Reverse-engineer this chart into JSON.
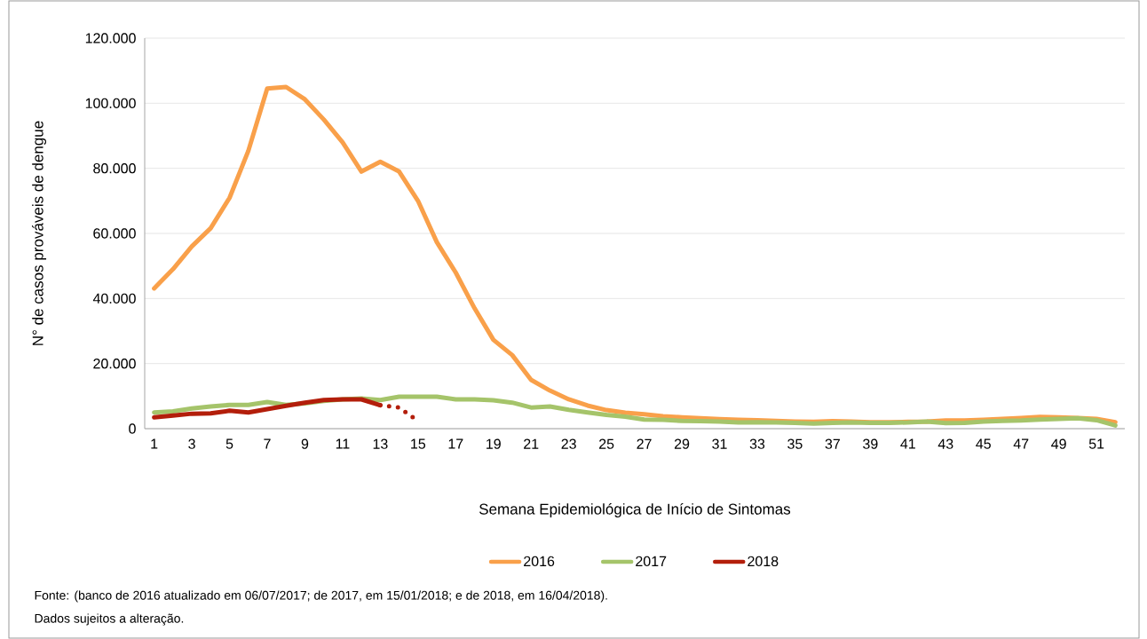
{
  "chart_data": {
    "type": "line",
    "xlabel": "Semana Epidemiológica de Início de Sintomas",
    "ylabel": "N° de casos prováveis de dengue",
    "annotations": [
      "Fonte: (banco de 2016 atualizado em 06/07/2017; de 2017, em 15/01/2018; e de 2018, em 16/04/2018).",
      "Dados sujeitos a alteração."
    ],
    "x": [
      1,
      2,
      3,
      4,
      5,
      6,
      7,
      8,
      9,
      10,
      11,
      12,
      13,
      14,
      15,
      16,
      17,
      18,
      19,
      20,
      21,
      22,
      23,
      24,
      25,
      26,
      27,
      28,
      29,
      30,
      31,
      32,
      33,
      34,
      35,
      36,
      37,
      38,
      39,
      40,
      41,
      42,
      43,
      44,
      45,
      46,
      47,
      48,
      49,
      50,
      51,
      52
    ],
    "series": [
      {
        "name": "2016",
        "color": "#f9a04a",
        "values": [
          43100,
          49000,
          56000,
          61600,
          70900,
          85400,
          104500,
          105000,
          101200,
          95000,
          88000,
          79000,
          82000,
          79000,
          70000,
          57300,
          48000,
          37000,
          27300,
          22600,
          15000,
          11700,
          9000,
          7100,
          5700,
          4900,
          4400,
          3800,
          3500,
          3200,
          2900,
          2700,
          2600,
          2400,
          2200,
          2100,
          2300,
          2200,
          2000,
          2000,
          2100,
          2200,
          2500,
          2500,
          2700,
          3000,
          3300,
          3600,
          3500,
          3300,
          3000,
          2000
        ]
      },
      {
        "name": "2017",
        "color": "#a5c46a",
        "values": [
          5000,
          5300,
          6200,
          6800,
          7300,
          7300,
          8200,
          7300,
          7800,
          8500,
          9000,
          9300,
          8800,
          9800,
          9800,
          9800,
          9000,
          9000,
          8700,
          8000,
          6500,
          6800,
          5800,
          5000,
          4200,
          3700,
          2800,
          2700,
          2400,
          2300,
          2200,
          1900,
          2000,
          1900,
          1800,
          1600,
          1800,
          1900,
          1800,
          1800,
          1900,
          2200,
          1700,
          1800,
          2200,
          2400,
          2500,
          2800,
          3000,
          3200,
          2600,
          1000
        ]
      },
      {
        "name": "2018",
        "color": "#b31e0b",
        "x": [
          1,
          2,
          3,
          4,
          5,
          6,
          7,
          8,
          9,
          10,
          11,
          12,
          13
        ],
        "values": [
          3500,
          4000,
          4600,
          4700,
          5500,
          5000,
          6000,
          7000,
          8000,
          8800,
          9000,
          9000,
          7200
        ]
      },
      {
        "color": "#b31e0b",
        "line_style": "dotted",
        "x": [
          13,
          14,
          15
        ],
        "values": [
          7200,
          6500,
          2400
        ]
      }
    ],
    "xlim": [
      0.5,
      52.5
    ],
    "xticks": [
      1,
      3,
      5,
      7,
      9,
      11,
      13,
      15,
      17,
      19,
      21,
      23,
      25,
      27,
      29,
      31,
      33,
      35,
      37,
      39,
      41,
      43,
      45,
      47,
      49,
      51
    ],
    "ylim": [
      0,
      120000
    ],
    "yticks": [
      0,
      {
        "value": 20000,
        "label": "20.000"
      },
      {
        "value": 40000,
        "label": "40.000"
      },
      {
        "value": 60000,
        "label": "60.000"
      },
      {
        "value": 80000,
        "label": "80.000"
      },
      {
        "value": 100000,
        "label": "100.000"
      },
      {
        "value": 120000,
        "label": "120.000"
      }
    ],
    "grid": "y",
    "legend": "bottom"
  }
}
